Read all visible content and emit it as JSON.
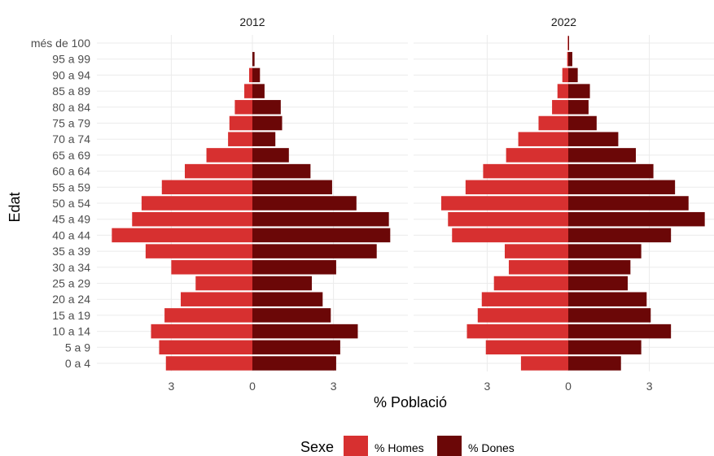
{
  "chart_data": {
    "type": "bar",
    "orientation": "horizontal",
    "facets": [
      "2012",
      "2022"
    ],
    "categories": [
      "0 a 4",
      "5 a 9",
      "10 a 14",
      "15 a 19",
      "20 a 24",
      "25 a 29",
      "30 a 34",
      "35 a 39",
      "40 a 44",
      "45 a 49",
      "50 a 54",
      "55 a 59",
      "60 a 64",
      "65 a 69",
      "70 a 74",
      "75 a 79",
      "80 a 84",
      "85 a 89",
      "90 a 94",
      "95 a 99",
      "més de 100"
    ],
    "xlabel": "% Població",
    "ylabel": "Edat",
    "xticks": [
      -3,
      0,
      3
    ],
    "xtick_labels": [
      "3",
      "0",
      "3"
    ],
    "xlim": [
      -5.6,
      5.7
    ],
    "legend": {
      "title": "Sexe",
      "position": "bottom",
      "entries": [
        "% Homes",
        "% Dones"
      ]
    },
    "colors": {
      "homes": "#d73030",
      "dones": "#6b0707",
      "grid": "#ebebeb"
    },
    "grid": true,
    "series": [
      {
        "name": "% Homes",
        "facet": "2012",
        "values": [
          3.2,
          3.45,
          3.75,
          3.25,
          2.65,
          2.1,
          3.0,
          3.95,
          5.2,
          4.45,
          4.1,
          3.35,
          2.5,
          1.7,
          0.9,
          0.85,
          0.65,
          0.3,
          0.12,
          0.0,
          0.0
        ]
      },
      {
        "name": "% Dones",
        "facet": "2012",
        "values": [
          3.1,
          3.25,
          3.9,
          2.9,
          2.6,
          2.2,
          3.1,
          4.6,
          5.1,
          5.05,
          3.85,
          2.95,
          2.15,
          1.35,
          0.85,
          1.1,
          1.05,
          0.45,
          0.28,
          0.08,
          0.0
        ]
      },
      {
        "name": "% Homes",
        "facet": "2022",
        "values": [
          1.75,
          3.05,
          3.75,
          3.35,
          3.2,
          2.75,
          2.2,
          2.35,
          4.3,
          4.45,
          4.7,
          3.8,
          3.15,
          2.3,
          1.85,
          1.1,
          0.6,
          0.4,
          0.22,
          0.04,
          0.02
        ]
      },
      {
        "name": "% Dones",
        "facet": "2022",
        "values": [
          1.95,
          2.7,
          3.8,
          3.05,
          2.9,
          2.2,
          2.3,
          2.7,
          3.8,
          5.05,
          4.45,
          3.95,
          3.15,
          2.5,
          1.85,
          1.05,
          0.75,
          0.8,
          0.35,
          0.15,
          0.03
        ]
      }
    ]
  }
}
